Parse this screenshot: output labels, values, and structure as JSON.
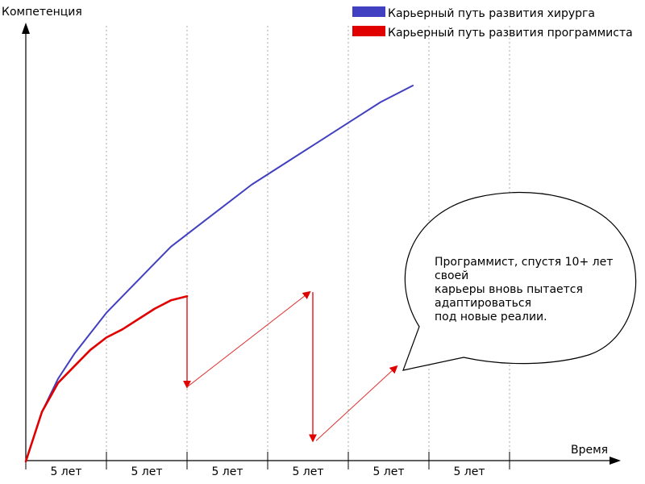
{
  "chart_data": {
    "type": "line",
    "title": "",
    "ylabel": "Компетенция",
    "xlabel": "Время",
    "tick_label_unit": "5 лет",
    "x_segments": 6,
    "grid": "vertical-dotted",
    "legend_placement": "top-right",
    "xlim": [
      0,
      30
    ],
    "ylim": [
      0,
      1
    ],
    "series": [
      {
        "name": "Карьерный путь развития хирурга",
        "color": "#4040c0",
        "x": [
          0,
          1,
          2,
          3,
          4,
          5,
          6,
          7,
          8,
          9,
          10,
          12,
          14,
          16,
          18,
          20,
          22,
          24
        ],
        "y": [
          0,
          0.12,
          0.2,
          0.26,
          0.31,
          0.36,
          0.4,
          0.44,
          0.48,
          0.52,
          0.55,
          0.61,
          0.67,
          0.72,
          0.77,
          0.82,
          0.87,
          0.91
        ]
      },
      {
        "name": "Карьерный путь развития программиста",
        "color": "#e00000",
        "segments": [
          {
            "style": "curve",
            "x": [
              0,
              1,
              2,
              3,
              4,
              5,
              6,
              7,
              8,
              9,
              10
            ],
            "y": [
              0,
              0.12,
              0.19,
              0.23,
              0.27,
              0.3,
              0.32,
              0.345,
              0.37,
              0.39,
              0.4
            ]
          },
          {
            "style": "arrow",
            "x": [
              10,
              10
            ],
            "y": [
              0.4,
              0.18
            ]
          },
          {
            "style": "arrow-thin",
            "x": [
              10,
              17.6
            ],
            "y": [
              0.18,
              0.41
            ]
          },
          {
            "style": "arrow",
            "x": [
              17.8,
              17.8
            ],
            "y": [
              0.41,
              0.05
            ]
          },
          {
            "style": "arrow-thin",
            "x": [
              18,
              23
            ],
            "y": [
              0.05,
              0.23
            ]
          }
        ]
      }
    ],
    "annotation": {
      "lines": [
        "Программист, спустя 10+ лет",
        "своей",
        "карьеры вновь пытается",
        "адаптироваться",
        "под новые реалии."
      ]
    }
  },
  "colors": {
    "axis": "#000000",
    "grid": "#aaaaaa",
    "surgeon": "#4040c0",
    "programmer": "#e00000",
    "programmer_arrow": "#e03030"
  }
}
